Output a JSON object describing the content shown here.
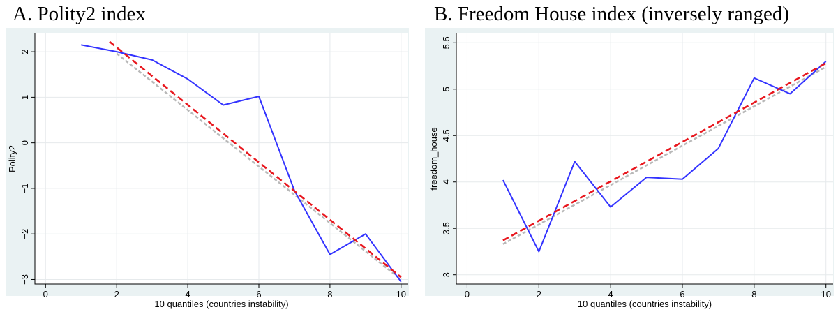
{
  "chart_data": [
    {
      "type": "line",
      "title": "A. Polity2 index",
      "xlabel": "10 quantiles (countries instability)",
      "ylabel": "Polity2",
      "xlim": [
        -0.3,
        10.2
      ],
      "ylim": [
        -3.1,
        2.4
      ],
      "xticks": [
        0,
        2,
        4,
        6,
        8,
        10
      ],
      "xtick_labels": [
        "0",
        "2",
        "4",
        "6",
        "8",
        "10"
      ],
      "yticks": [
        -3,
        -2,
        -1,
        0,
        1,
        2
      ],
      "ytick_labels": [
        "−3",
        "−2",
        "−1",
        "0",
        "1",
        "2"
      ],
      "grid": true,
      "series": [
        {
          "style": "solid",
          "color": "#3333ff",
          "x": [
            1,
            2,
            3,
            4,
            5,
            6,
            7,
            8,
            9,
            10
          ],
          "y": [
            2.15,
            2.0,
            1.82,
            1.4,
            0.83,
            1.02,
            -1.05,
            -2.45,
            -2.0,
            -3.05
          ]
        },
        {
          "style": "dashed",
          "color": "#e8171e",
          "x": [
            1.8,
            10
          ],
          "y": [
            2.22,
            -2.95
          ]
        },
        {
          "style": "dashed",
          "color": "#b8b8b8",
          "x": [
            2,
            10
          ],
          "y": [
            1.96,
            -3.0
          ]
        }
      ]
    },
    {
      "type": "line",
      "title": "B. Freedom House index (inversely ranged)",
      "xlabel": "10 quantiles (countries instability)",
      "ylabel": "freedom_house",
      "xlim": [
        -0.3,
        10.2
      ],
      "ylim": [
        2.9,
        5.6
      ],
      "xticks": [
        0,
        2,
        4,
        6,
        8,
        10
      ],
      "xtick_labels": [
        "0",
        "2",
        "4",
        "6",
        "8",
        "10"
      ],
      "yticks": [
        3,
        3.5,
        4,
        4.5,
        5,
        5.5
      ],
      "ytick_labels": [
        "3",
        "3.5",
        "4",
        "4.5",
        "5",
        "5.5"
      ],
      "grid": true,
      "series": [
        {
          "style": "solid",
          "color": "#3333ff",
          "x": [
            1,
            2,
            3,
            4,
            5,
            6,
            7,
            8,
            9,
            10
          ],
          "y": [
            4.02,
            3.25,
            4.22,
            3.73,
            4.05,
            4.03,
            4.36,
            5.12,
            4.95,
            5.3
          ]
        },
        {
          "style": "dashed",
          "color": "#e8171e",
          "x": [
            1,
            10
          ],
          "y": [
            3.37,
            5.28
          ]
        },
        {
          "style": "dashed",
          "color": "#b8b8b8",
          "x": [
            1,
            10
          ],
          "y": [
            3.33,
            5.24
          ]
        }
      ]
    }
  ]
}
